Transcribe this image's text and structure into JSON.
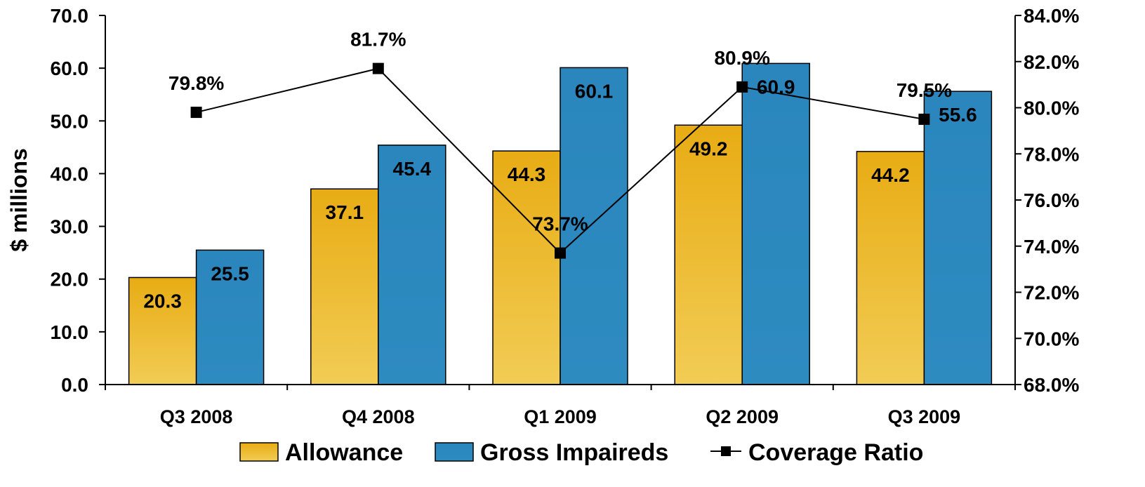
{
  "chart_data": {
    "type": "bar",
    "categories": [
      "Q3 2008",
      "Q4 2008",
      "Q1 2009",
      "Q2 2009",
      "Q3 2009"
    ],
    "series": [
      {
        "name": "Allowance",
        "type": "bar",
        "axis": "left",
        "values": [
          20.3,
          37.1,
          44.3,
          49.2,
          44.2
        ],
        "labels": [
          "20.3",
          "37.1",
          "44.3",
          "49.2",
          "44.2"
        ],
        "color": "#E8AC14"
      },
      {
        "name": "Gross Impaireds",
        "type": "bar",
        "axis": "left",
        "values": [
          25.5,
          45.4,
          60.1,
          60.9,
          55.6
        ],
        "labels": [
          "25.5",
          "45.4",
          "60.1",
          "60.9",
          "55.6"
        ],
        "color": "#2E8BC0"
      },
      {
        "name": "Coverage Ratio",
        "type": "line",
        "axis": "right",
        "values": [
          79.8,
          81.7,
          73.7,
          80.9,
          79.5
        ],
        "labels": [
          "79.8%",
          "81.7%",
          "73.7%",
          "80.9%",
          "79.5%"
        ],
        "color": "#000000"
      }
    ],
    "ylabel": "$ millions",
    "ylim": [
      0,
      70
    ],
    "y_ticks": [
      "0.0",
      "10.0",
      "20.0",
      "30.0",
      "40.0",
      "50.0",
      "60.0",
      "70.0"
    ],
    "y2lim": [
      68,
      84
    ],
    "y2_ticks": [
      "68.0%",
      "70.0%",
      "72.0%",
      "74.0%",
      "76.0%",
      "78.0%",
      "80.0%",
      "82.0%",
      "84.0%"
    ],
    "legend_position": "bottom",
    "grid": false
  }
}
